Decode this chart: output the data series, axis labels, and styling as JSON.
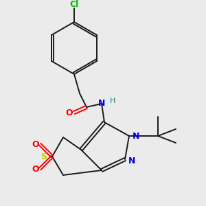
{
  "background_color": "#ebebeb",
  "atom_colors": {
    "C": "#1a1a1a",
    "N": "#0000ee",
    "O": "#ff0000",
    "S": "#cccc00",
    "Cl": "#00bb00",
    "H": "#008080"
  },
  "bond_color": "#1a1a1a",
  "figsize": [
    3.0,
    3.0
  ],
  "dpi": 100
}
